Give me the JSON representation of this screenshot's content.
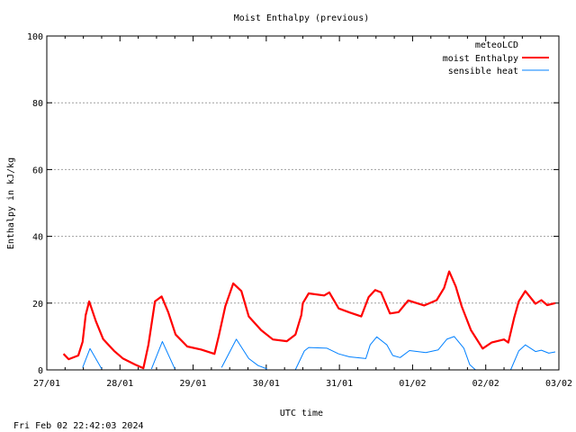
{
  "footer_timestamp": "Fri Feb 02 22:42:03 2024",
  "chart_data": {
    "type": "line",
    "title": "Moist Enthalpy (previous)",
    "xlabel": "UTC time",
    "ylabel": "Enthalpy in kJ/kg",
    "xlim": [
      "2024-01-27 00:00",
      "2024-02-03 00:00"
    ],
    "ylim": [
      0,
      100
    ],
    "x_tick_labels": [
      "27/01",
      "28/01",
      "29/01",
      "30/01",
      "31/01",
      "01/02",
      "02/02",
      "03/02"
    ],
    "y_tick_labels": [
      "0",
      "20",
      "40",
      "60",
      "80",
      "100"
    ],
    "grid": "horizontal dotted",
    "legend": {
      "title": "meteoLCD",
      "placement": "top-right"
    },
    "series": [
      {
        "name": "moist Enthalpy",
        "color": "#ff0000",
        "points": [
          [
            "2024-01-27 05:30",
            4.8
          ],
          [
            "2024-01-27 07:10",
            3.2
          ],
          [
            "2024-01-27 10:20",
            4.3
          ],
          [
            "2024-01-27 11:45",
            8.4
          ],
          [
            "2024-01-27 12:45",
            16.4
          ],
          [
            "2024-01-27 13:55",
            20.5
          ],
          [
            "2024-01-27 16:05",
            14.6
          ],
          [
            "2024-01-27 18:30",
            9.2
          ],
          [
            "2024-01-27 22:05",
            5.7
          ],
          [
            "2024-01-28 01:00",
            3.4
          ],
          [
            "2024-01-28 05:00",
            1.6
          ],
          [
            "2024-01-28 07:40",
            0.5
          ],
          [
            "2024-01-28 09:20",
            7.5
          ],
          [
            "2024-01-28 11:30",
            20.5
          ],
          [
            "2024-01-28 13:40",
            22.0
          ],
          [
            "2024-01-28 15:50",
            17.3
          ],
          [
            "2024-01-28 18:15",
            10.6
          ],
          [
            "2024-01-28 22:05",
            7.0
          ],
          [
            "2024-01-29 02:40",
            6.1
          ],
          [
            "2024-01-29 07:00",
            4.8
          ],
          [
            "2024-01-29 08:25",
            10.2
          ],
          [
            "2024-01-29 10:35",
            19.1
          ],
          [
            "2024-01-29 13:10",
            25.9
          ],
          [
            "2024-01-29 15:50",
            23.6
          ],
          [
            "2024-01-29 18:15",
            16.0
          ],
          [
            "2024-01-29 22:20",
            11.9
          ],
          [
            "2024-01-30 02:10",
            9.1
          ],
          [
            "2024-01-30 06:45",
            8.6
          ],
          [
            "2024-01-30 09:35",
            10.6
          ],
          [
            "2024-01-30 11:30",
            16.4
          ],
          [
            "2024-01-30 12:00",
            20.0
          ],
          [
            "2024-01-30 13:55",
            22.9
          ],
          [
            "2024-01-30 19:00",
            22.3
          ],
          [
            "2024-01-30 20:40",
            23.2
          ],
          [
            "2024-01-30 23:45",
            18.4
          ],
          [
            "2024-01-31 03:20",
            17.2
          ],
          [
            "2024-01-31 07:10",
            16.0
          ],
          [
            "2024-01-31 09:35",
            21.8
          ],
          [
            "2024-01-31 11:45",
            23.9
          ],
          [
            "2024-01-31 13:40",
            23.2
          ],
          [
            "2024-01-31 16:35",
            16.9
          ],
          [
            "2024-01-31 19:25",
            17.3
          ],
          [
            "2024-01-31 22:35",
            20.8
          ],
          [
            "2024-02-01 03:50",
            19.3
          ],
          [
            "2024-02-01 07:55",
            20.9
          ],
          [
            "2024-02-01 10:20",
            24.5
          ],
          [
            "2024-02-01 12:00",
            29.5
          ],
          [
            "2024-02-01 14:10",
            25.0
          ],
          [
            "2024-02-01 16:05",
            19.1
          ],
          [
            "2024-02-01 19:10",
            11.9
          ],
          [
            "2024-02-01 23:00",
            6.4
          ],
          [
            "2024-02-02 01:55",
            8.2
          ],
          [
            "2024-02-02 06:00",
            9.1
          ],
          [
            "2024-02-02 07:25",
            8.2
          ],
          [
            "2024-02-02 09:20",
            15.6
          ],
          [
            "2024-02-02 10:50",
            20.5
          ],
          [
            "2024-02-02 13:00",
            23.6
          ],
          [
            "2024-02-02 16:20",
            19.8
          ],
          [
            "2024-02-02 18:15",
            20.9
          ],
          [
            "2024-02-02 20:10",
            19.4
          ],
          [
            "2024-02-02 22:50",
            20.0
          ]
        ]
      },
      {
        "name": "sensible heat",
        "color": "#0080ff",
        "points": [
          [
            "2024-01-27 11:45",
            0.7
          ],
          [
            "2024-01-27 14:10",
            6.4
          ],
          [
            "2024-01-27 18:00",
            0.3
          ],
          null,
          [
            "2024-01-28 10:20",
            0.3
          ],
          [
            "2024-01-28 13:55",
            8.5
          ],
          [
            "2024-01-28 18:00",
            0.3
          ],
          null,
          [
            "2024-01-29 09:20",
            0.7
          ],
          [
            "2024-01-29 14:10",
            9.2
          ],
          [
            "2024-01-29 18:15",
            3.4
          ],
          [
            "2024-01-29 21:20",
            1.3
          ],
          [
            "2024-01-30 00:15",
            0.3
          ],
          null,
          [
            "2024-01-30 09:35",
            0.1
          ],
          [
            "2024-01-30 12:30",
            5.7
          ],
          [
            "2024-01-30 13:55",
            6.7
          ],
          [
            "2024-01-30 19:55",
            6.5
          ],
          [
            "2024-01-30 23:45",
            4.8
          ],
          [
            "2024-01-31 03:20",
            3.9
          ],
          [
            "2024-01-31 08:40",
            3.4
          ],
          [
            "2024-01-31 10:05",
            7.5
          ],
          [
            "2024-01-31 12:15",
            9.9
          ],
          [
            "2024-01-31 15:35",
            7.5
          ],
          [
            "2024-01-31 17:30",
            4.3
          ],
          [
            "2024-01-31 19:55",
            3.7
          ],
          [
            "2024-01-31 23:00",
            5.8
          ],
          [
            "2024-02-01 04:20",
            5.2
          ],
          [
            "2024-02-01 08:25",
            6.0
          ],
          [
            "2024-02-01 11:15",
            9.2
          ],
          [
            "2024-02-01 13:40",
            10.0
          ],
          [
            "2024-02-01 16:50",
            6.5
          ],
          [
            "2024-02-01 18:45",
            1.6
          ],
          [
            "2024-02-01 20:40",
            0.0
          ],
          null,
          [
            "2024-02-02 08:10",
            0.0
          ],
          [
            "2024-02-02 10:50",
            5.7
          ],
          [
            "2024-02-02 13:00",
            7.5
          ],
          [
            "2024-02-02 16:20",
            5.5
          ],
          [
            "2024-02-02 18:15",
            5.9
          ],
          [
            "2024-02-02 20:40",
            5.0
          ],
          [
            "2024-02-02 22:50",
            5.4
          ]
        ]
      }
    ]
  }
}
